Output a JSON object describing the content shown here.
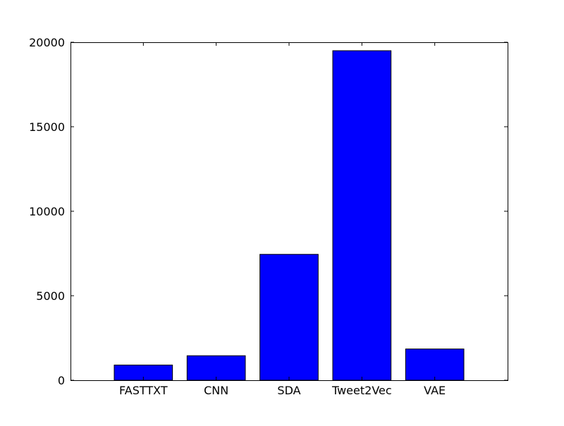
{
  "chart_data": {
    "type": "bar",
    "title": "",
    "xlabel": "",
    "ylabel": "",
    "categories": [
      "FASTTXT",
      "CNN",
      "SDA",
      "Tweet2Vec",
      "VAE"
    ],
    "values": [
      900,
      1450,
      7450,
      19500,
      1850
    ],
    "ylim": [
      0,
      20000
    ],
    "yticks": [
      0,
      5000,
      10000,
      15000,
      20000
    ],
    "ytick_labels": [
      "0",
      "5000",
      "10000",
      "15000",
      "20000"
    ],
    "grid": false,
    "bar_color": "#0000ff",
    "edge_color": "#000000"
  }
}
